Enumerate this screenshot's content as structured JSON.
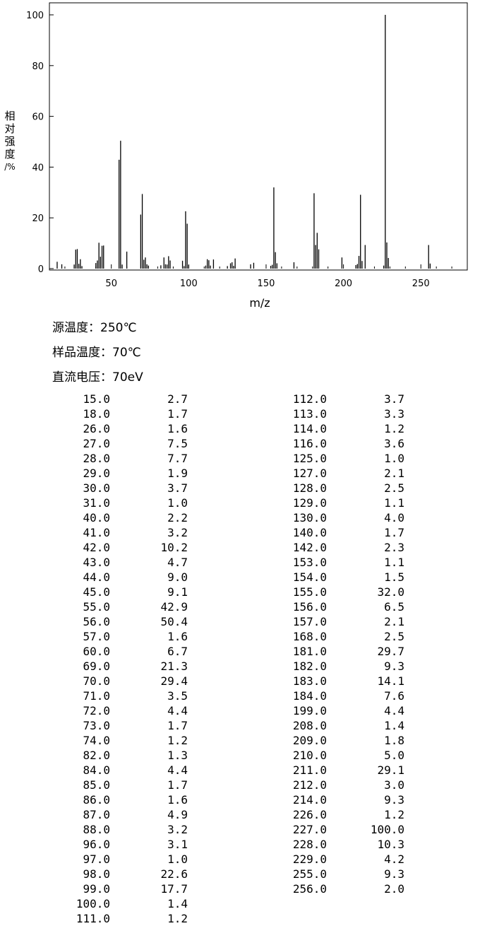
{
  "chart_data": {
    "type": "bar",
    "xlabel": "m/z",
    "ylabel": "相对强度/%",
    "xlim": [
      10,
      280
    ],
    "ylim": [
      0,
      100
    ],
    "xticks": [
      50,
      100,
      150,
      200,
      250
    ],
    "yticks": [
      0,
      20,
      40,
      60,
      80,
      100
    ],
    "grid": false,
    "peaks": [
      [
        15.0,
        2.7
      ],
      [
        18.0,
        1.7
      ],
      [
        26.0,
        1.6
      ],
      [
        27.0,
        7.5
      ],
      [
        28.0,
        7.7
      ],
      [
        29.0,
        1.9
      ],
      [
        30.0,
        3.7
      ],
      [
        31.0,
        1.0
      ],
      [
        40.0,
        2.2
      ],
      [
        41.0,
        3.2
      ],
      [
        42.0,
        10.2
      ],
      [
        43.0,
        4.7
      ],
      [
        44.0,
        9.0
      ],
      [
        45.0,
        9.1
      ],
      [
        55.0,
        42.9
      ],
      [
        56.0,
        50.4
      ],
      [
        57.0,
        1.6
      ],
      [
        60.0,
        6.7
      ],
      [
        69.0,
        21.3
      ],
      [
        70.0,
        29.4
      ],
      [
        71.0,
        3.5
      ],
      [
        72.0,
        4.4
      ],
      [
        73.0,
        1.7
      ],
      [
        74.0,
        1.2
      ],
      [
        82.0,
        1.3
      ],
      [
        84.0,
        4.4
      ],
      [
        85.0,
        1.7
      ],
      [
        86.0,
        1.6
      ],
      [
        87.0,
        4.9
      ],
      [
        88.0,
        3.2
      ],
      [
        96.0,
        3.1
      ],
      [
        97.0,
        1.0
      ],
      [
        98.0,
        22.6
      ],
      [
        99.0,
        17.7
      ],
      [
        100.0,
        1.4
      ],
      [
        111.0,
        1.2
      ],
      [
        112.0,
        3.7
      ],
      [
        113.0,
        3.3
      ],
      [
        114.0,
        1.2
      ],
      [
        116.0,
        3.6
      ],
      [
        125.0,
        1.0
      ],
      [
        127.0,
        2.1
      ],
      [
        128.0,
        2.5
      ],
      [
        129.0,
        1.1
      ],
      [
        130.0,
        4.0
      ],
      [
        140.0,
        1.7
      ],
      [
        142.0,
        2.3
      ],
      [
        153.0,
        1.1
      ],
      [
        154.0,
        1.5
      ],
      [
        155.0,
        32.0
      ],
      [
        156.0,
        6.5
      ],
      [
        157.0,
        2.1
      ],
      [
        168.0,
        2.5
      ],
      [
        181.0,
        29.7
      ],
      [
        182.0,
        9.3
      ],
      [
        183.0,
        14.1
      ],
      [
        184.0,
        7.6
      ],
      [
        199.0,
        4.4
      ],
      [
        208.0,
        1.4
      ],
      [
        209.0,
        1.8
      ],
      [
        210.0,
        5.0
      ],
      [
        211.0,
        29.1
      ],
      [
        212.0,
        3.0
      ],
      [
        214.0,
        9.3
      ],
      [
        226.0,
        1.2
      ],
      [
        227.0,
        100.0
      ],
      [
        228.0,
        10.3
      ],
      [
        229.0,
        4.2
      ],
      [
        255.0,
        9.3
      ],
      [
        256.0,
        2.0
      ]
    ]
  },
  "ylabel_chars": [
    "相",
    "对",
    "强",
    "度",
    "/%"
  ],
  "conditions": {
    "source_temp": "源温度：250℃",
    "sample_temp": "样品温度：70℃",
    "voltage": "直流电压：70eV"
  },
  "table": {
    "left": [
      [
        "15.0",
        "2.7"
      ],
      [
        "18.0",
        "1.7"
      ],
      [
        "26.0",
        "1.6"
      ],
      [
        "27.0",
        "7.5"
      ],
      [
        "28.0",
        "7.7"
      ],
      [
        "29.0",
        "1.9"
      ],
      [
        "30.0",
        "3.7"
      ],
      [
        "31.0",
        "1.0"
      ],
      [
        "40.0",
        "2.2"
      ],
      [
        "41.0",
        "3.2"
      ],
      [
        "42.0",
        "10.2"
      ],
      [
        "43.0",
        "4.7"
      ],
      [
        "44.0",
        "9.0"
      ],
      [
        "45.0",
        "9.1"
      ],
      [
        "55.0",
        "42.9"
      ],
      [
        "56.0",
        "50.4"
      ],
      [
        "57.0",
        "1.6"
      ],
      [
        "60.0",
        "6.7"
      ],
      [
        "69.0",
        "21.3"
      ],
      [
        "70.0",
        "29.4"
      ],
      [
        "71.0",
        "3.5"
      ],
      [
        "72.0",
        "4.4"
      ],
      [
        "73.0",
        "1.7"
      ],
      [
        "74.0",
        "1.2"
      ],
      [
        "82.0",
        "1.3"
      ],
      [
        "84.0",
        "4.4"
      ],
      [
        "85.0",
        "1.7"
      ],
      [
        "86.0",
        "1.6"
      ],
      [
        "87.0",
        "4.9"
      ],
      [
        "88.0",
        "3.2"
      ],
      [
        "96.0",
        "3.1"
      ],
      [
        "97.0",
        "1.0"
      ],
      [
        "98.0",
        "22.6"
      ],
      [
        "99.0",
        "17.7"
      ],
      [
        "100.0",
        "1.4"
      ],
      [
        "111.0",
        "1.2"
      ]
    ],
    "right": [
      [
        "112.0",
        "3.7"
      ],
      [
        "113.0",
        "3.3"
      ],
      [
        "114.0",
        "1.2"
      ],
      [
        "116.0",
        "3.6"
      ],
      [
        "125.0",
        "1.0"
      ],
      [
        "127.0",
        "2.1"
      ],
      [
        "128.0",
        "2.5"
      ],
      [
        "129.0",
        "1.1"
      ],
      [
        "130.0",
        "4.0"
      ],
      [
        "140.0",
        "1.7"
      ],
      [
        "142.0",
        "2.3"
      ],
      [
        "153.0",
        "1.1"
      ],
      [
        "154.0",
        "1.5"
      ],
      [
        "155.0",
        "32.0"
      ],
      [
        "156.0",
        "6.5"
      ],
      [
        "157.0",
        "2.1"
      ],
      [
        "168.0",
        "2.5"
      ],
      [
        "181.0",
        "29.7"
      ],
      [
        "182.0",
        "9.3"
      ],
      [
        "183.0",
        "14.1"
      ],
      [
        "184.0",
        "7.6"
      ],
      [
        "199.0",
        "4.4"
      ],
      [
        "208.0",
        "1.4"
      ],
      [
        "209.0",
        "1.8"
      ],
      [
        "210.0",
        "5.0"
      ],
      [
        "211.0",
        "29.1"
      ],
      [
        "212.0",
        "3.0"
      ],
      [
        "214.0",
        "9.3"
      ],
      [
        "226.0",
        "1.2"
      ],
      [
        "227.0",
        "100.0"
      ],
      [
        "228.0",
        "10.3"
      ],
      [
        "229.0",
        "4.2"
      ],
      [
        "255.0",
        "9.3"
      ],
      [
        "256.0",
        "2.0"
      ]
    ]
  }
}
